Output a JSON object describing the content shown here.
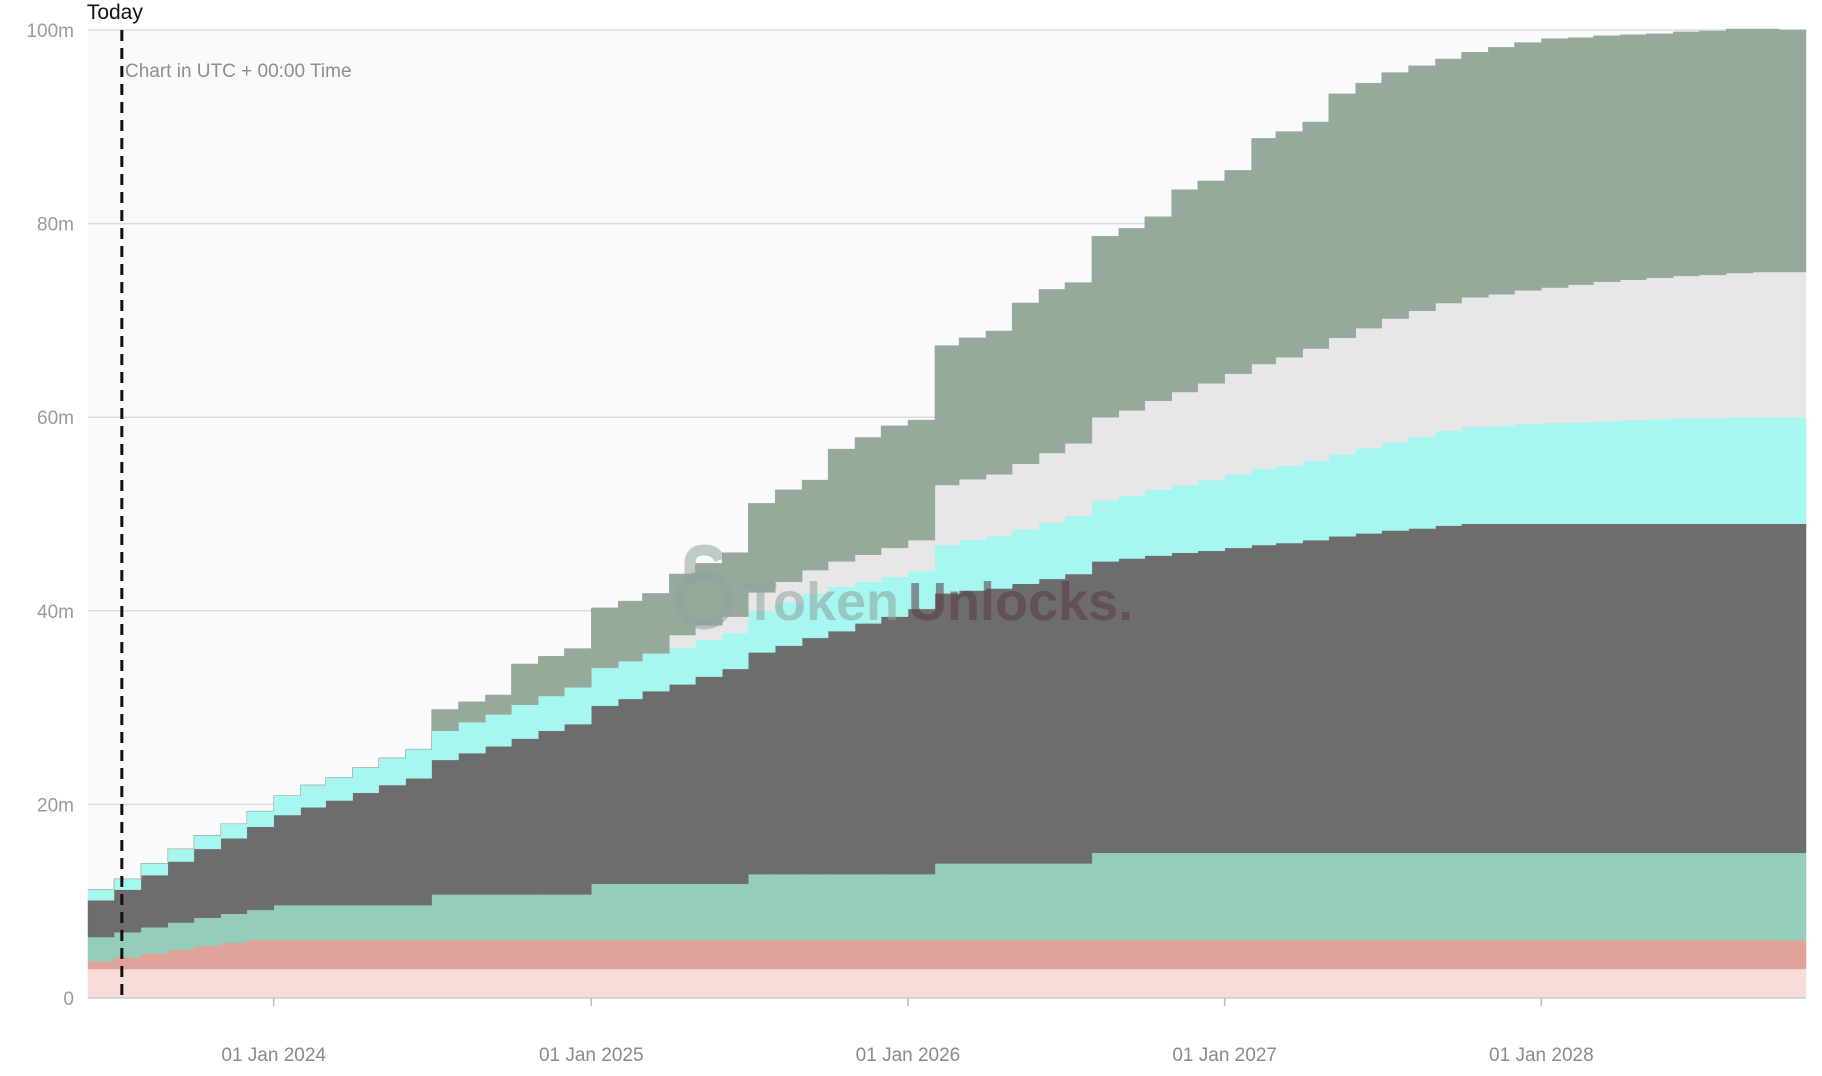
{
  "chart_data": {
    "type": "area",
    "stacked": true,
    "step": true,
    "title": "",
    "xlabel": "",
    "ylabel": "",
    "x_start": "2023-06-01",
    "x_end": "2028-11-01",
    "ylim": [
      0,
      100
    ],
    "y_ticks": [
      0,
      20,
      40,
      60,
      80,
      100
    ],
    "y_tick_labels": [
      "0",
      "20m",
      "40m",
      "60m",
      "80m",
      "100m"
    ],
    "x_ticks": [
      "2024-01-01",
      "2025-01-01",
      "2026-01-01",
      "2027-01-01",
      "2028-01-01"
    ],
    "x_tick_labels": [
      "01 Jan 2024",
      "01 Jan 2025",
      "01 Jan 2026",
      "01 Jan 2027",
      "01 Jan 2028"
    ],
    "grid": true,
    "note": "Chart in UTC + 00:00 Time",
    "today": {
      "date": "2023-07-10",
      "label": "Today"
    },
    "watermark": {
      "part1": "Token",
      "part2": "Unlocks."
    },
    "months": [
      "2023-06",
      "2023-07",
      "2023-08",
      "2023-09",
      "2023-10",
      "2023-11",
      "2023-12",
      "2024-01",
      "2024-02",
      "2024-03",
      "2024-04",
      "2024-05",
      "2024-06",
      "2024-07",
      "2024-08",
      "2024-09",
      "2024-10",
      "2024-11",
      "2024-12",
      "2025-01",
      "2025-02",
      "2025-03",
      "2025-04",
      "2025-05",
      "2025-06",
      "2025-07",
      "2025-08",
      "2025-09",
      "2025-10",
      "2025-11",
      "2025-12",
      "2026-01",
      "2026-02",
      "2026-03",
      "2026-04",
      "2026-05",
      "2026-06",
      "2026-07",
      "2026-08",
      "2026-09",
      "2026-10",
      "2026-11",
      "2026-12",
      "2027-01",
      "2027-02",
      "2027-03",
      "2027-04",
      "2027-05",
      "2027-06",
      "2027-07",
      "2027-08",
      "2027-09",
      "2027-10",
      "2027-11",
      "2027-12",
      "2028-01",
      "2028-02",
      "2028-03",
      "2028-04",
      "2028-05",
      "2028-06",
      "2028-07",
      "2028-08",
      "2028-09",
      "2028-10"
    ],
    "series": [
      {
        "color": "#f7dcd9",
        "values": [
          3,
          3,
          3,
          3,
          3,
          3,
          3,
          3,
          3,
          3,
          3,
          3,
          3,
          3,
          3,
          3,
          3,
          3,
          3,
          3,
          3,
          3,
          3,
          3,
          3,
          3,
          3,
          3,
          3,
          3,
          3,
          3,
          3,
          3,
          3,
          3,
          3,
          3,
          3,
          3,
          3,
          3,
          3,
          3,
          3,
          3,
          3,
          3,
          3,
          3,
          3,
          3,
          3,
          3,
          3,
          3,
          3,
          3,
          3,
          3,
          3,
          3,
          3,
          3,
          3
        ]
      },
      {
        "color": "#dfa39a",
        "values": [
          0.8,
          1.2,
          1.6,
          2.0,
          2.4,
          2.7,
          3,
          3,
          3,
          3,
          3,
          3,
          3,
          3,
          3,
          3,
          3,
          3,
          3,
          3,
          3,
          3,
          3,
          3,
          3,
          3,
          3,
          3,
          3,
          3,
          3,
          3,
          3,
          3,
          3,
          3,
          3,
          3,
          3,
          3,
          3,
          3,
          3,
          3,
          3,
          3,
          3,
          3,
          3,
          3,
          3,
          3,
          3,
          3,
          3,
          3,
          3,
          3,
          3,
          3,
          3,
          3,
          3,
          3,
          3
        ]
      },
      {
        "color": "#94cdb8",
        "values": [
          2.5,
          2.6,
          2.7,
          2.8,
          2.9,
          3.0,
          3.1,
          3.6,
          3.6,
          3.6,
          3.6,
          3.6,
          3.6,
          4.7,
          4.7,
          4.7,
          4.7,
          4.7,
          4.7,
          5.8,
          5.8,
          5.8,
          5.8,
          5.8,
          5.8,
          6.8,
          6.8,
          6.8,
          6.8,
          6.8,
          6.8,
          6.8,
          7.9,
          7.9,
          7.9,
          7.9,
          7.9,
          7.9,
          9.0,
          9.0,
          9.0,
          9.0,
          9.0,
          9.0,
          9.0,
          9.0,
          9.0,
          9.0,
          9.0,
          9.0,
          9.0,
          9.0,
          9.0,
          9.0,
          9.0,
          9.0,
          9.0,
          9.0,
          9.0,
          9.0,
          9.0,
          9.0,
          9.0,
          9.0,
          9.0
        ]
      },
      {
        "color": "#6d6d6d",
        "values": [
          3.8,
          4.4,
          5.4,
          6.3,
          7.1,
          7.8,
          8.6,
          9.3,
          10.1,
          10.8,
          11.6,
          12.4,
          13.1,
          13.9,
          14.6,
          15.3,
          16.1,
          16.9,
          17.6,
          18.4,
          19.1,
          19.9,
          20.6,
          21.4,
          22.2,
          22.9,
          23.6,
          24.4,
          25.1,
          25.9,
          26.6,
          27.4,
          27.9,
          28.2,
          28.4,
          28.9,
          29.4,
          29.9,
          30.1,
          30.4,
          30.7,
          31.0,
          31.2,
          31.5,
          31.8,
          32.0,
          32.3,
          32.7,
          33.0,
          33.3,
          33.5,
          33.8,
          34.0,
          34.0,
          34.0,
          34.0,
          34.0,
          34.0,
          34.0,
          34.0,
          34.0,
          34.0,
          34.0,
          34.0,
          34.0
        ]
      },
      {
        "color": "#a6f7f0",
        "values": [
          1.1,
          1.1,
          1.2,
          1.3,
          1.4,
          1.5,
          1.6,
          2.0,
          2.3,
          2.4,
          2.6,
          2.8,
          3.0,
          3.0,
          3.2,
          3.3,
          3.5,
          3.6,
          3.8,
          3.9,
          3.9,
          3.9,
          3.8,
          3.8,
          3.7,
          4.3,
          4.5,
          4.6,
          4.6,
          4.3,
          4.1,
          3.9,
          5.0,
          5.2,
          5.4,
          5.6,
          5.8,
          6.0,
          6.3,
          6.5,
          6.8,
          7.0,
          7.3,
          7.6,
          7.9,
          8.0,
          8.2,
          8.5,
          8.8,
          9.1,
          9.5,
          9.8,
          10.0,
          10.1,
          10.3,
          10.4,
          10.5,
          10.6,
          10.7,
          10.8,
          10.9,
          10.9,
          11.0,
          11.0,
          11.0
        ]
      },
      {
        "color": "#e7e7e7",
        "values": [
          0,
          0,
          0,
          0,
          0,
          0,
          0,
          0,
          0,
          0,
          0,
          0,
          0,
          0,
          0,
          0,
          0,
          0,
          0,
          0,
          0,
          0,
          1.3,
          1.5,
          1.7,
          1.9,
          2.1,
          2.4,
          2.6,
          2.8,
          3.0,
          3.2,
          6.2,
          6.3,
          6.4,
          6.8,
          7.2,
          7.5,
          8.6,
          8.8,
          9.2,
          9.6,
          10.0,
          10.4,
          10.8,
          11.2,
          11.6,
          12.0,
          12.4,
          12.8,
          13.0,
          13.2,
          13.4,
          13.6,
          13.8,
          14.0,
          14.2,
          14.4,
          14.5,
          14.6,
          14.7,
          14.8,
          14.9,
          15.0,
          15.0
        ]
      },
      {
        "color": "#96aa9c",
        "values": [
          0,
          0,
          0,
          0,
          0,
          0,
          0,
          0,
          0,
          0,
          0,
          0,
          0,
          2.2,
          2.1,
          2.0,
          4.2,
          4.1,
          4.0,
          6.2,
          6.2,
          6.2,
          6.3,
          6.4,
          6.6,
          9.2,
          9.5,
          9.3,
          11.6,
          12.1,
          12.6,
          12.4,
          14.4,
          14.6,
          14.8,
          16.6,
          16.9,
          16.6,
          18.7,
          18.8,
          19.0,
          20.9,
          20.9,
          21.0,
          23.3,
          23.3,
          23.4,
          25.2,
          25.3,
          25.4,
          25.3,
          25.2,
          25.3,
          25.5,
          25.6,
          25.7,
          25.5,
          25.4,
          25.3,
          25.2,
          25.2,
          25.2,
          25.2,
          25.1,
          25.0
        ]
      }
    ]
  }
}
